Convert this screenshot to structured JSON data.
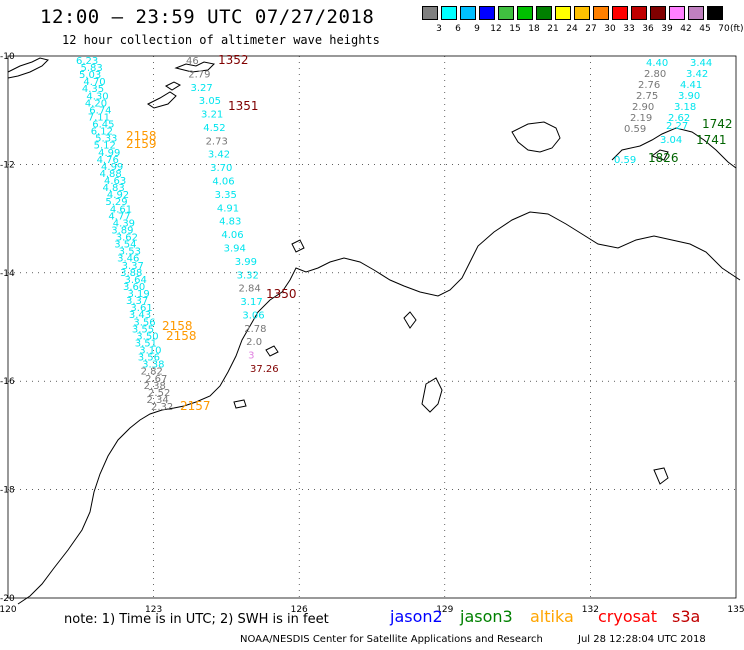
{
  "header": {
    "title": "12:00 – 23:59 UTC 07/27/2018",
    "subtitle": "12 hour collection of altimeter wave heights"
  },
  "color_scale": {
    "labels": [
      "3",
      "6",
      "9",
      "12",
      "15",
      "18",
      "21",
      "24",
      "27",
      "30",
      "33",
      "36",
      "39",
      "42",
      "45",
      "70"
    ],
    "unit": "(ft)",
    "colors": [
      "#808080",
      "#00ffff",
      "#00bfff",
      "#0000ff",
      "#40c040",
      "#00c000",
      "#008000",
      "#ffff00",
      "#ffc000",
      "#ff8000",
      "#ff0000",
      "#c00000",
      "#800000",
      "#ff80ff",
      "#c080c0",
      "#000000"
    ]
  },
  "map": {
    "lon_labels": [
      "120",
      "123",
      "126",
      "129",
      "132",
      "135"
    ],
    "lat_labels": [
      "-10",
      "-12",
      "-14",
      "-16",
      "-18",
      "-20"
    ],
    "lon_range": [
      120,
      135
    ],
    "lat_range": [
      -20,
      -10
    ]
  },
  "tracks": {
    "left_swh": [
      "6.23",
      "5.83",
      "5.03",
      "4.70",
      "4.35",
      "4.30",
      "4.20",
      "6.74",
      "7.11",
      "6.45",
      "6.12",
      "5.33",
      "5.12",
      "4.99",
      "4.76",
      "4.99",
      "4.88",
      "4.63",
      "4.83",
      "4.92",
      "5.29",
      "4.61",
      "4.77",
      "4.39",
      "3.89",
      "3.62",
      "3.54",
      "3.53",
      "3.46",
      "3.37",
      "3.88",
      "3.64",
      "3.60",
      "3.19",
      "3.37",
      "3.61",
      "3.43",
      "3.56",
      "3.55",
      "3.50",
      "3.51",
      "3.10",
      "3.56",
      "3.38",
      "2.82",
      "2.67",
      "2.38",
      "2.52",
      "2.34",
      "2.32"
    ],
    "middle_swh": [
      "46",
      "2.79",
      "3.27",
      "3.05",
      "3.21",
      "4.52",
      "2.73",
      "3.42",
      "3.70",
      "4.06",
      "3.35",
      "4.91",
      "4.83",
      "4.06",
      "3.94",
      "3.99",
      "3.32",
      "2.84",
      "3.17",
      "3.06",
      "2.78",
      "2.0",
      "3",
      "37.26"
    ],
    "right_swh": [
      "4.40",
      "3.44",
      "2.80",
      "3.42",
      "2.76",
      "4.41",
      "2.75",
      "3.90",
      "2.90",
      "3.18",
      "2.19",
      "2.62",
      "0.59",
      "2.27",
      "3.04",
      "0.59"
    ],
    "time_labels": {
      "maroon": [
        "1352",
        "1351",
        "1350"
      ],
      "orange": [
        "2158",
        "2159",
        "2158",
        "2158",
        "2157"
      ],
      "green": [
        "1742",
        "1741",
        "1826"
      ]
    }
  },
  "footer": {
    "note": "note: 1) Time is in UTC; 2) SWH is in feet",
    "satellites": [
      {
        "name": "jason2",
        "color": "#0000ff"
      },
      {
        "name": "jason3",
        "color": "#008000"
      },
      {
        "name": "altika",
        "color": "#ffa500"
      },
      {
        "name": "cryosat",
        "color": "#ff0000"
      },
      {
        "name": "s3a",
        "color": "#c00000"
      }
    ],
    "credit": "NOAA/NESDIS Center for Satellite Applications and Research",
    "timestamp": "Jul 28 12:28:04 UTC 2018"
  }
}
